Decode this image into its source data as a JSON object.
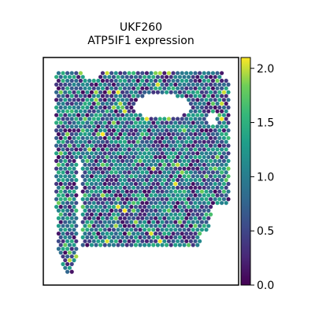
{
  "chart_data": {
    "type": "scatter",
    "title": "UKF260",
    "subtitle": "ATP5IF1 expression",
    "xlabel": "",
    "ylabel": "",
    "colorbar": {
      "colormap": "viridis",
      "range": [
        0.0,
        2.1
      ],
      "ticks": [
        0.0,
        0.5,
        1.0,
        1.5,
        2.0
      ],
      "tick_labels": [
        "0.0",
        "0.5",
        "1.0",
        "1.5",
        "2.0"
      ]
    },
    "grid": false,
    "legend": "none",
    "spots": {
      "layout": "hexagonal spatial spot grid",
      "value_range": [
        0.0,
        2.1
      ],
      "typical_value": 1.0
    }
  },
  "colors": {
    "frame": "#000000",
    "background": "#ffffff"
  }
}
